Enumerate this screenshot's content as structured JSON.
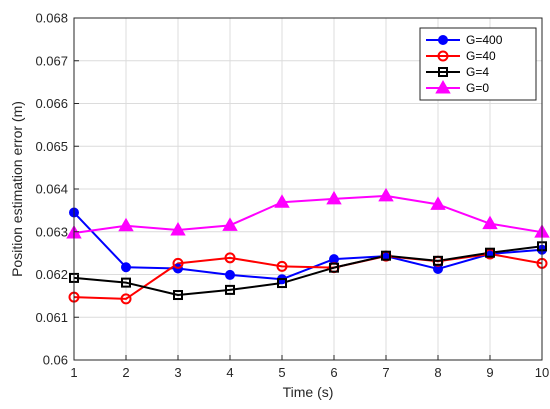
{
  "chart_data": {
    "type": "line",
    "xlabel": "Time (s)",
    "ylabel": "Position estimation error (m)",
    "xlim": [
      1,
      10
    ],
    "ylim": [
      0.06,
      0.068
    ],
    "xticks": [
      1,
      2,
      3,
      4,
      5,
      6,
      7,
      8,
      9,
      10
    ],
    "yticks": [
      "0.06",
      "0.061",
      "0.062",
      "0.063",
      "0.064",
      "0.065",
      "0.066",
      "0.067",
      "0.068"
    ],
    "grid": true,
    "legend_position": "top-right",
    "x": [
      1,
      2,
      3,
      4,
      5,
      6,
      7,
      8,
      9,
      10
    ],
    "series": [
      {
        "name": "G=400",
        "color": "#0000ff",
        "marker": "circle-filled",
        "values": [
          0.06345,
          0.06217,
          0.06214,
          0.06199,
          0.06189,
          0.06236,
          0.06243,
          0.06213,
          0.06248,
          0.06258
        ]
      },
      {
        "name": "G=40",
        "color": "#ff0000",
        "marker": "circle-open",
        "values": [
          0.06147,
          0.06143,
          0.06226,
          0.06239,
          0.06219,
          0.06216,
          0.06243,
          0.06231,
          0.06248,
          0.06226
        ]
      },
      {
        "name": "G=4",
        "color": "#000000",
        "marker": "square-open",
        "values": [
          0.06192,
          0.06181,
          0.06152,
          0.06164,
          0.0618,
          0.06216,
          0.06244,
          0.06232,
          0.06251,
          0.06266
        ]
      },
      {
        "name": "G=0",
        "color": "#ff00ff",
        "marker": "triangle-filled",
        "values": [
          0.06297,
          0.06314,
          0.06304,
          0.06315,
          0.06369,
          0.06377,
          0.06384,
          0.06364,
          0.06319,
          0.06299
        ]
      }
    ]
  }
}
